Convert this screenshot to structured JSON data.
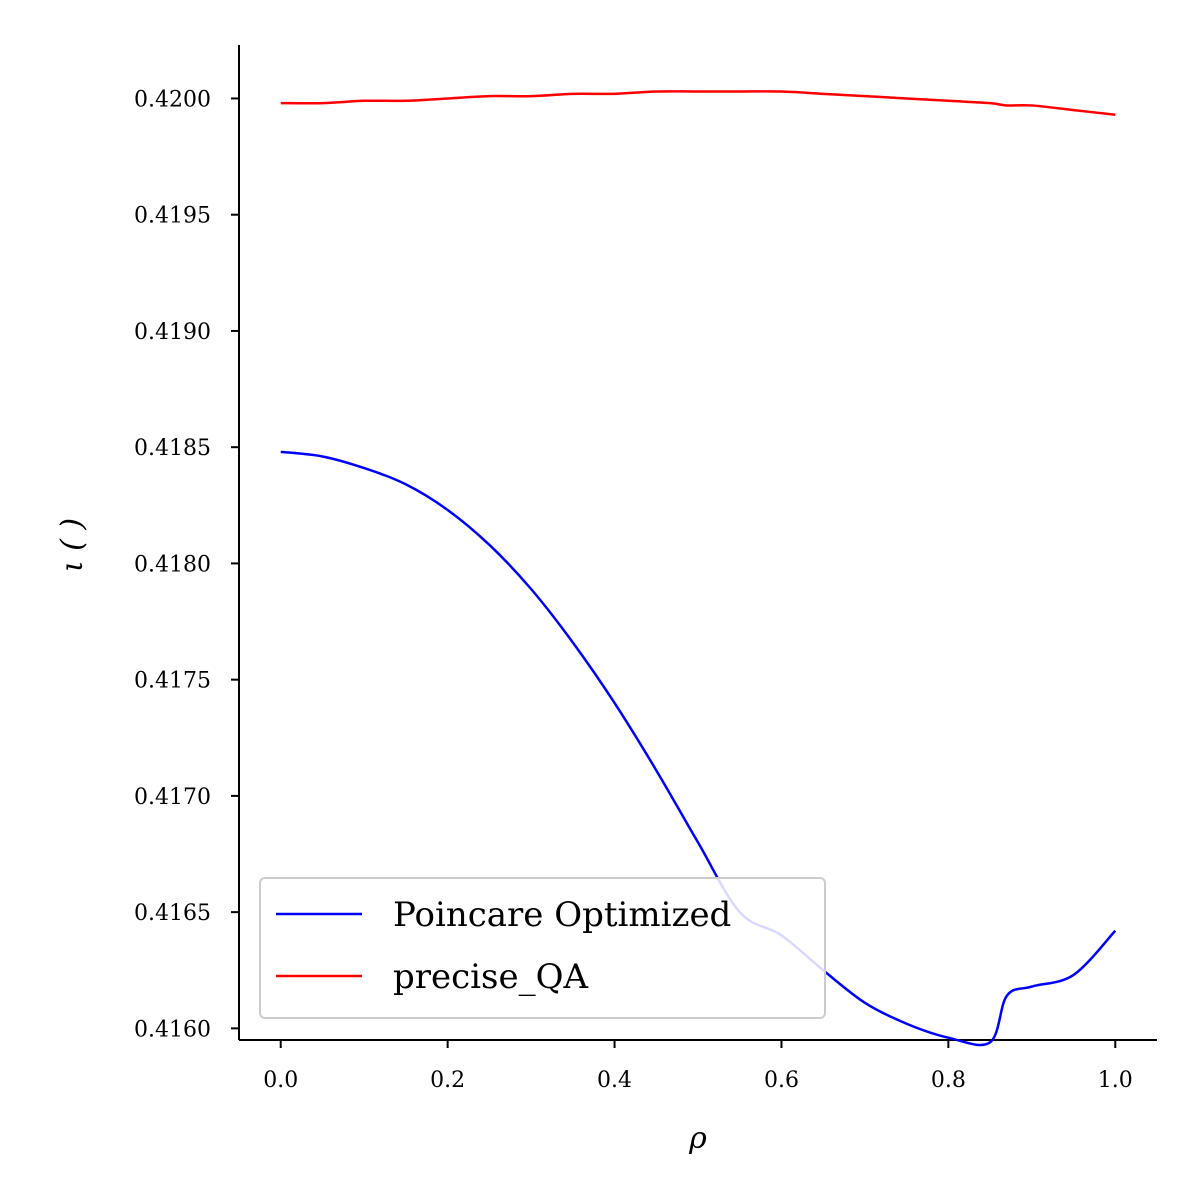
{
  "chart_data": {
    "type": "line",
    "title": "",
    "xlabel": "ρ",
    "ylabel": "ι ( )",
    "xlim": [
      -0.05,
      1.05
    ],
    "ylim": [
      0.41595,
      0.42023
    ],
    "x_ticks": [
      0.0,
      0.2,
      0.4,
      0.6,
      0.8,
      1.0
    ],
    "x_tick_labels": [
      "0.0",
      "0.2",
      "0.4",
      "0.6",
      "0.8",
      "1.0"
    ],
    "y_ticks": [
      0.416,
      0.4165,
      0.417,
      0.4175,
      0.418,
      0.4185,
      0.419,
      0.4195,
      0.42
    ],
    "y_tick_labels": [
      "0.4160",
      "0.4165",
      "0.4170",
      "0.4175",
      "0.4180",
      "0.4185",
      "0.4190",
      "0.4195",
      "0.4200"
    ],
    "grid": false,
    "legend_position": "lower-left",
    "x": [
      0.0,
      0.05,
      0.1,
      0.15,
      0.2,
      0.25,
      0.3,
      0.35,
      0.4,
      0.45,
      0.5,
      0.55,
      0.6,
      0.65,
      0.7,
      0.75,
      0.8,
      0.85,
      0.87,
      0.9,
      0.95,
      1.0
    ],
    "series": [
      {
        "name": "Poincare Optimized",
        "color": "#0000ff",
        "values": [
          0.41848,
          0.41846,
          0.41841,
          0.41834,
          0.41823,
          0.41808,
          0.41789,
          0.41766,
          0.4174,
          0.41711,
          0.4168,
          0.4165,
          0.4164,
          0.41625,
          0.41611,
          0.41602,
          0.41596,
          0.41594,
          0.41614,
          0.41618,
          0.41623,
          0.41642
        ]
      },
      {
        "name": "precise_QA",
        "color": "#ff0000",
        "values": [
          0.41998,
          0.41998,
          0.41999,
          0.41999,
          0.42,
          0.42001,
          0.42001,
          0.42002,
          0.42002,
          0.42003,
          0.42003,
          0.42003,
          0.42003,
          0.42002,
          0.42001,
          0.42,
          0.41999,
          0.41998,
          0.41997,
          0.41997,
          0.41995,
          0.41993
        ]
      }
    ]
  }
}
